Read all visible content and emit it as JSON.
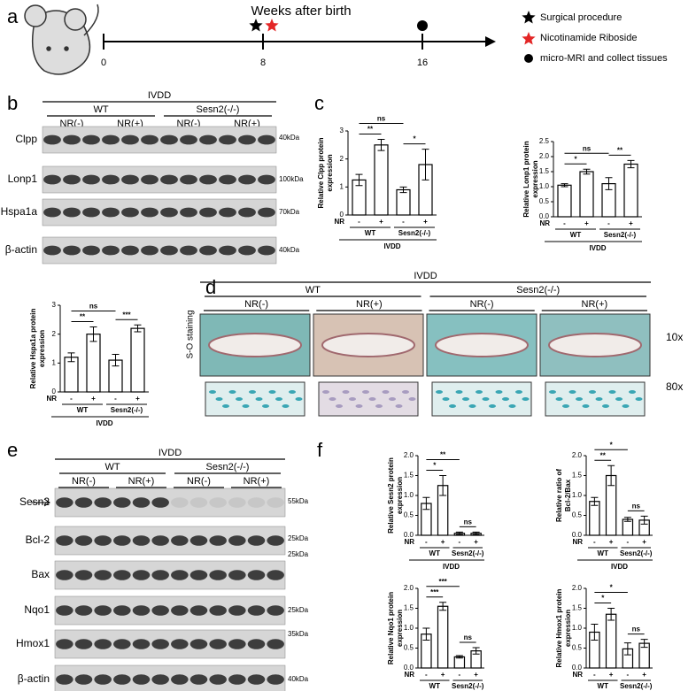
{
  "panels": [
    "a",
    "b",
    "c",
    "d",
    "e",
    "f"
  ],
  "timeline": {
    "title": "Weeks after birth",
    "ticks": [
      0,
      8,
      16
    ],
    "legend": [
      "Surgical procedure",
      "Nicotinamide Riboside",
      "micro-MRI and collect tissues"
    ]
  },
  "blot_b": {
    "group": "IVDD",
    "genotypes": [
      "WT",
      "Sesn2(-/-)"
    ],
    "treatments": [
      "NR(-)",
      "NR(+)",
      "NR(-)",
      "NR(+)"
    ],
    "rows": [
      "Clpp",
      "Lonp1",
      "Hspa1a",
      "β-actin"
    ],
    "markers": [
      "40kDa",
      "100kDa",
      "70kDa",
      "40kDa"
    ]
  },
  "staining_d": {
    "group": "IVDD",
    "genotypes": [
      "WT",
      "Sesn2(-/-)"
    ],
    "treatments": [
      "NR(-)",
      "NR(+)",
      "NR(-)",
      "NR(+)"
    ],
    "stain": "S-O staining",
    "magnifications": [
      "10x",
      "80x"
    ]
  },
  "blot_e": {
    "group": "IVDD",
    "genotypes": [
      "WT",
      "Sesn2(-/-)"
    ],
    "treatments": [
      "NR(-)",
      "NR(+)",
      "NR(-)",
      "NR(+)"
    ],
    "rows": [
      "Sesn2",
      "Bcl-2",
      "Bax",
      "Nqo1",
      "Hmox1",
      "β-actin"
    ],
    "markers": [
      "55kDa",
      "25kDa",
      "25kDa",
      "25kDa",
      "35kDa",
      "40kDa"
    ]
  },
  "chart_data": [
    {
      "type": "bar",
      "ylabel": [
        "Relative Clpp protein",
        "expression"
      ],
      "categories": [
        "-",
        "+",
        "-",
        "+"
      ],
      "row_label": "NR",
      "groups": [
        "WT",
        "Sesn2(-/-)"
      ],
      "group_label": "IVDD",
      "values": [
        1.25,
        2.5,
        0.9,
        1.8
      ],
      "errors": [
        0.2,
        0.2,
        0.1,
        0.55
      ],
      "ylim": [
        0,
        3
      ],
      "yticks": [
        0,
        1,
        2,
        3
      ],
      "annotations": [
        {
          "label": "**",
          "pair": [
            0,
            1
          ]
        },
        {
          "label": "*",
          "pair": [
            2,
            3
          ]
        },
        {
          "label": "ns",
          "pair": [
            0,
            2
          ]
        }
      ]
    },
    {
      "type": "bar",
      "ylabel": [
        "Relative Lonp1 protein",
        "expression"
      ],
      "categories": [
        "-",
        "+",
        "-",
        "+"
      ],
      "row_label": "NR",
      "groups": [
        "WT",
        "Sesn2(-/-)"
      ],
      "group_label": "IVDD",
      "values": [
        1.05,
        1.5,
        1.1,
        1.75
      ],
      "errors": [
        0.05,
        0.08,
        0.2,
        0.12
      ],
      "ylim": [
        0,
        2.5
      ],
      "yticks": [
        {
          "value": 0,
          "label": "0.0"
        },
        0.5,
        {
          "value": 1,
          "label": "1.0"
        },
        1.5,
        {
          "value": 2,
          "label": "2.0"
        },
        2.5
      ],
      "annotations": [
        {
          "label": "*",
          "pair": [
            0,
            1
          ]
        },
        {
          "label": "**",
          "pair": [
            2,
            3
          ]
        },
        {
          "label": "ns",
          "pair": [
            0,
            2
          ]
        }
      ]
    },
    {
      "type": "bar",
      "ylabel": [
        "Relative Hspa1a protein",
        "expression"
      ],
      "categories": [
        "-",
        "+",
        "-",
        "+"
      ],
      "row_label": "NR",
      "groups": [
        "WT",
        "Sesn2(-/-)"
      ],
      "group_label": "IVDD",
      "values": [
        1.2,
        2.0,
        1.1,
        2.2
      ],
      "errors": [
        0.15,
        0.25,
        0.2,
        0.12
      ],
      "ylim": [
        0,
        3
      ],
      "yticks": [
        0,
        1,
        2,
        3
      ],
      "annotations": [
        {
          "label": "**",
          "pair": [
            0,
            1
          ]
        },
        {
          "label": "***",
          "pair": [
            2,
            3
          ]
        },
        {
          "label": "ns",
          "pair": [
            0,
            2
          ]
        }
      ]
    },
    {
      "type": "bar",
      "ylabel": [
        "Relative Sesn2 protein",
        "expression"
      ],
      "categories": [
        "-",
        "+",
        "-",
        "+"
      ],
      "row_label": "NR",
      "groups": [
        "WT",
        "Sesn2(-/-)"
      ],
      "group_label": "IVDD",
      "values": [
        0.8,
        1.25,
        0.05,
        0.05
      ],
      "errors": [
        0.15,
        0.25,
        0.03,
        0.03
      ],
      "ylim": [
        0,
        2
      ],
      "yticks": [
        {
          "value": 0,
          "label": "0.0"
        },
        0.5,
        {
          "value": 1,
          "label": "1.0"
        },
        1.5,
        {
          "value": 2,
          "label": "2.0"
        }
      ],
      "annotations": [
        {
          "label": "*",
          "pair": [
            0,
            1
          ]
        },
        {
          "label": "**",
          "pair": [
            0,
            2
          ]
        },
        {
          "label": "ns",
          "pair": [
            2,
            3
          ]
        }
      ]
    },
    {
      "type": "bar",
      "ylabel": [
        "Relative ratio of",
        "Bcl-2/Bax"
      ],
      "categories": [
        "-",
        "+",
        "-",
        "+"
      ],
      "row_label": "NR",
      "groups": [
        "WT",
        "Sesn2(-/-)"
      ],
      "group_label": "IVDD",
      "values": [
        0.85,
        1.5,
        0.4,
        0.38
      ],
      "errors": [
        0.1,
        0.25,
        0.05,
        0.1
      ],
      "ylim": [
        0,
        2
      ],
      "yticks": [
        {
          "value": 0,
          "label": "0.0"
        },
        0.5,
        {
          "value": 1,
          "label": "1.0"
        },
        1.5,
        {
          "value": 2,
          "label": "2.0"
        }
      ],
      "annotations": [
        {
          "label": "**",
          "pair": [
            0,
            1
          ]
        },
        {
          "label": "*",
          "pair": [
            0,
            2
          ]
        },
        {
          "label": "ns",
          "pair": [
            2,
            3
          ]
        }
      ]
    },
    {
      "type": "bar",
      "ylabel": [
        "Relative Nqo1 protein",
        "expression"
      ],
      "categories": [
        "-",
        "+",
        "-",
        "+"
      ],
      "row_label": "NR",
      "groups": [
        "WT",
        "Sesn2(-/-)"
      ],
      "group_label": "IVDD",
      "values": [
        0.85,
        1.55,
        0.28,
        0.43
      ],
      "errors": [
        0.15,
        0.1,
        0.03,
        0.08
      ],
      "ylim": [
        0,
        2
      ],
      "yticks": [
        {
          "value": 0,
          "label": "0.0"
        },
        0.5,
        {
          "value": 1,
          "label": "1.0"
        },
        1.5,
        {
          "value": 2,
          "label": "2.0"
        }
      ],
      "annotations": [
        {
          "label": "***",
          "pair": [
            0,
            1
          ]
        },
        {
          "label": "***",
          "pair": [
            0,
            2
          ]
        },
        {
          "label": "ns",
          "pair": [
            2,
            3
          ]
        }
      ]
    },
    {
      "type": "bar",
      "ylabel": [
        "Relative Hmox1 protein",
        "expression"
      ],
      "categories": [
        "-",
        "+",
        "-",
        "+"
      ],
      "row_label": "NR",
      "groups": [
        "WT",
        "Sesn2(-/-)"
      ],
      "group_label": "IVDD",
      "values": [
        0.9,
        1.35,
        0.48,
        0.62
      ],
      "errors": [
        0.2,
        0.15,
        0.15,
        0.1
      ],
      "ylim": [
        0,
        2
      ],
      "yticks": [
        {
          "value": 0,
          "label": "0.0"
        },
        0.5,
        {
          "value": 1,
          "label": "1.0"
        },
        1.5,
        {
          "value": 2,
          "label": "2.0"
        }
      ],
      "annotations": [
        {
          "label": "*",
          "pair": [
            0,
            1
          ]
        },
        {
          "label": "*",
          "pair": [
            0,
            2
          ]
        },
        {
          "label": "ns",
          "pair": [
            2,
            3
          ]
        }
      ]
    }
  ]
}
